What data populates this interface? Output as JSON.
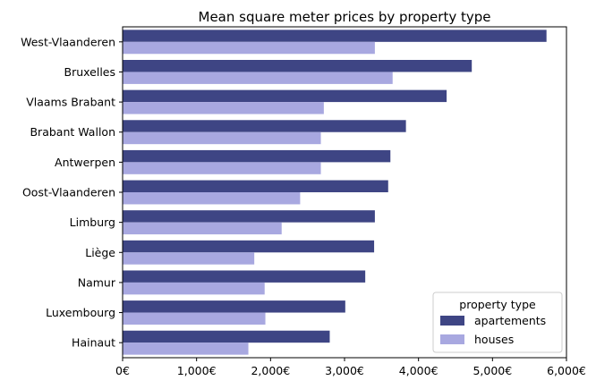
{
  "chart_data": {
    "type": "bar",
    "orientation": "horizontal",
    "title": "Mean square meter prices by property type",
    "xlabel": "",
    "ylabel": "",
    "xlim": [
      0,
      6000
    ],
    "x_ticks": [
      0,
      1000,
      2000,
      3000,
      4000,
      5000,
      6000
    ],
    "x_tick_labels": [
      "0€",
      "1,000€",
      "2,000€",
      "3,000€",
      "4,000€",
      "5,000€",
      "6,000€"
    ],
    "grid": false,
    "legend": {
      "title": "property type",
      "placement": "lower-right"
    },
    "categories": [
      "West-Vlaanderen",
      "Bruxelles",
      "Vlaams Brabant",
      "Brabant Wallon",
      "Antwerpen",
      "Oost-Vlaanderen",
      "Limburg",
      "Liège",
      "Namur",
      "Luxembourg",
      "Hainaut"
    ],
    "series": [
      {
        "name": "apartements",
        "color": "#3e4584",
        "values": [
          5730,
          4720,
          4380,
          3830,
          3620,
          3590,
          3410,
          3400,
          3280,
          3010,
          2800
        ]
      },
      {
        "name": "houses",
        "color": "#a8a8e0",
        "values": [
          3410,
          3650,
          2720,
          2680,
          2680,
          2400,
          2150,
          1780,
          1920,
          1930,
          1700
        ]
      }
    ]
  }
}
